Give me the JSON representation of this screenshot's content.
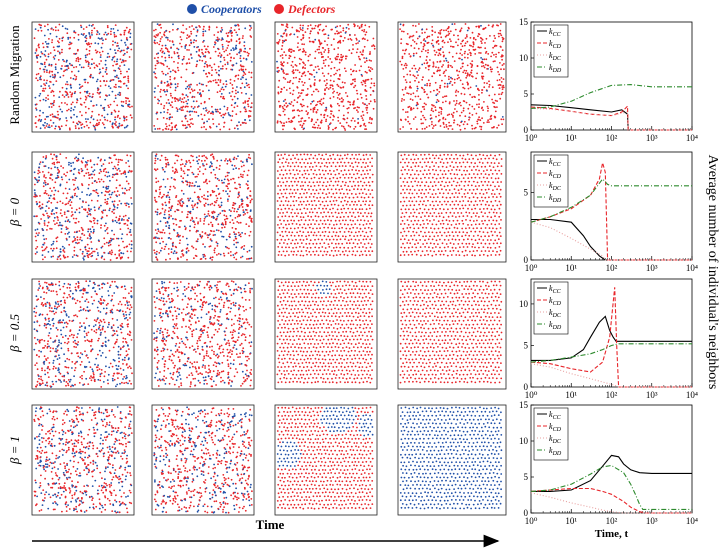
{
  "legend": {
    "items": [
      {
        "label": "Cooperators",
        "color": "#1f4fa8"
      },
      {
        "label": "Defectors",
        "color": "#e8252a"
      }
    ]
  },
  "row_labels": [
    "Random Migration",
    "β = 0",
    "β = 0.5",
    "β = 1"
  ],
  "snapshot_panels": [
    [
      {
        "cooperator_fraction": 0.35,
        "pattern": "random"
      },
      {
        "cooperator_fraction": 0.25,
        "pattern": "random"
      },
      {
        "cooperator_fraction": 0.05,
        "pattern": "random"
      },
      {
        "cooperator_fraction": 0.05,
        "pattern": "random"
      }
    ],
    [
      {
        "cooperator_fraction": 0.35,
        "pattern": "random"
      },
      {
        "cooperator_fraction": 0.25,
        "pattern": "random"
      },
      {
        "cooperator_fraction": 0.0,
        "pattern": "lattice"
      },
      {
        "cooperator_fraction": 0.0,
        "pattern": "lattice"
      }
    ],
    [
      {
        "cooperator_fraction": 0.35,
        "pattern": "random"
      },
      {
        "cooperator_fraction": 0.2,
        "pattern": "random"
      },
      {
        "cooperator_fraction": 0.02,
        "pattern": "lattice",
        "cluster": "top-center"
      },
      {
        "cooperator_fraction": 0.0,
        "pattern": "lattice"
      }
    ],
    [
      {
        "cooperator_fraction": 0.35,
        "pattern": "random"
      },
      {
        "cooperator_fraction": 0.3,
        "pattern": "random"
      },
      {
        "cooperator_fraction": 0.15,
        "pattern": "lattice",
        "cluster": "top-edges"
      },
      {
        "cooperator_fraction": 1.0,
        "pattern": "lattice"
      }
    ]
  ],
  "time_label": "Time",
  "right_axis_label": "Average number of individual's neighbors",
  "chart_data": [
    {
      "type": "line",
      "x_scale": "log",
      "xlim": [
        1,
        10000
      ],
      "ylim": [
        0,
        15
      ],
      "yticks": [
        0,
        5,
        10,
        15
      ],
      "xtick_labels": [
        "10⁰",
        "10¹",
        "10²",
        "10³",
        "10⁴"
      ],
      "xlabel": "",
      "legend_position": "top-left",
      "series": [
        {
          "name": "k_CC",
          "color": "#000000",
          "style": "solid",
          "x": [
            1,
            3,
            10,
            30,
            100,
            180,
            250,
            260,
            10000
          ],
          "y": [
            3.5,
            3.4,
            3.1,
            2.8,
            2.5,
            2.8,
            2.2,
            0,
            0
          ]
        },
        {
          "name": "k_CD",
          "color": "#e8252a",
          "style": "dashed",
          "x": [
            1,
            3,
            10,
            30,
            100,
            180,
            250,
            260,
            10000
          ],
          "y": [
            3.2,
            3.0,
            2.6,
            2.2,
            2.0,
            2.5,
            3.3,
            0,
            0
          ]
        },
        {
          "name": "k_DC",
          "color": "#e8a0a0",
          "style": "dotted",
          "x": [
            1,
            3,
            10,
            30,
            100,
            250,
            260,
            10000
          ],
          "y": [
            3.0,
            2.9,
            2.6,
            2.2,
            2.0,
            2.5,
            0,
            0
          ]
        },
        {
          "name": "k_DD",
          "color": "#2e8b2e",
          "style": "dashdot",
          "x": [
            1,
            3,
            10,
            30,
            100,
            300,
            1000,
            3000,
            10000
          ],
          "y": [
            3.0,
            3.2,
            4.0,
            5.2,
            6.2,
            6.3,
            6.0,
            6.0,
            6.0
          ]
        }
      ]
    },
    {
      "type": "line",
      "x_scale": "log",
      "xlim": [
        1,
        10000
      ],
      "ylim": [
        0,
        8
      ],
      "yticks": [
        0,
        5
      ],
      "xtick_labels": [
        "10⁰",
        "10¹",
        "10²",
        "10³",
        "10⁴"
      ],
      "xlabel": "",
      "legend_position": "top-left",
      "series": [
        {
          "name": "k_CC",
          "color": "#000000",
          "style": "solid",
          "x": [
            1,
            3,
            10,
            20,
            30,
            50,
            70,
            10000
          ],
          "y": [
            3.0,
            3.0,
            2.8,
            1.8,
            1.0,
            0.3,
            0,
            0
          ]
        },
        {
          "name": "k_CD",
          "color": "#e8252a",
          "style": "dashed",
          "x": [
            1,
            3,
            10,
            30,
            50,
            60,
            70,
            80,
            10000
          ],
          "y": [
            2.8,
            3.2,
            3.8,
            4.8,
            6.0,
            7.2,
            6.5,
            0,
            0
          ]
        },
        {
          "name": "k_DC",
          "color": "#e8a0a0",
          "style": "dotted",
          "x": [
            1,
            3,
            10,
            30,
            60,
            70,
            10000
          ],
          "y": [
            2.8,
            2.4,
            1.6,
            0.8,
            0.3,
            0,
            0
          ]
        },
        {
          "name": "k_DD",
          "color": "#2e8b2e",
          "style": "dashdot",
          "x": [
            1,
            3,
            10,
            30,
            60,
            80,
            100,
            1000,
            10000
          ],
          "y": [
            2.8,
            3.2,
            3.9,
            4.8,
            6.0,
            5.6,
            5.5,
            5.5,
            5.5
          ]
        }
      ]
    },
    {
      "type": "line",
      "x_scale": "log",
      "xlim": [
        1,
        10000
      ],
      "ylim": [
        0,
        13
      ],
      "yticks": [
        0,
        5,
        10
      ],
      "xtick_labels": [
        "10⁰",
        "10¹",
        "10²",
        "10³",
        "10⁴"
      ],
      "xlabel": "",
      "legend_position": "top-left",
      "series": [
        {
          "name": "k_CC",
          "color": "#000000",
          "style": "solid",
          "x": [
            1,
            3,
            10,
            20,
            30,
            50,
            70,
            90,
            110,
            130,
            10000
          ],
          "y": [
            3.2,
            3.2,
            3.5,
            4.5,
            6.0,
            7.8,
            8.5,
            6.8,
            6.0,
            5.5,
            5.5
          ]
        },
        {
          "name": "k_CD",
          "color": "#e8252a",
          "style": "dashed",
          "x": [
            1,
            3,
            10,
            30,
            60,
            90,
            120,
            135,
            150,
            10000
          ],
          "y": [
            3.0,
            2.8,
            2.2,
            1.8,
            3.0,
            6.0,
            12.0,
            5.0,
            0,
            0
          ]
        },
        {
          "name": "k_DC",
          "color": "#e8a0a0",
          "style": "dotted",
          "x": [
            1,
            3,
            10,
            30,
            60,
            120,
            150,
            10000
          ],
          "y": [
            2.8,
            2.4,
            1.6,
            1.0,
            0.6,
            0.2,
            0,
            0
          ]
        },
        {
          "name": "k_DD",
          "color": "#2e8b2e",
          "style": "dashdot",
          "x": [
            1,
            3,
            10,
            30,
            60,
            100,
            150,
            1000,
            10000
          ],
          "y": [
            3.0,
            3.2,
            3.6,
            4.0,
            4.5,
            5.0,
            5.2,
            5.2,
            5.2
          ]
        }
      ]
    },
    {
      "type": "line",
      "x_scale": "log",
      "xlim": [
        1,
        10000
      ],
      "ylim": [
        0,
        15
      ],
      "yticks": [
        0,
        5,
        10,
        15
      ],
      "xtick_labels": [
        "10⁰",
        "10¹",
        "10²",
        "10³",
        "10⁴"
      ],
      "xlabel": "Time, t",
      "legend_position": "top-left",
      "series": [
        {
          "name": "k_CC",
          "color": "#000000",
          "style": "solid",
          "x": [
            1,
            3,
            10,
            30,
            60,
            100,
            150,
            200,
            300,
            500,
            1000,
            10000
          ],
          "y": [
            3.0,
            3.0,
            3.2,
            4.5,
            6.5,
            8.0,
            7.8,
            6.8,
            6.0,
            5.6,
            5.5,
            5.5
          ]
        },
        {
          "name": "k_CD",
          "color": "#e8252a",
          "style": "dashed",
          "x": [
            1,
            3,
            10,
            30,
            60,
            100,
            200,
            300,
            500,
            700,
            10000
          ],
          "y": [
            3.0,
            3.2,
            3.4,
            3.4,
            3.0,
            2.6,
            1.6,
            0.8,
            0.2,
            0,
            0
          ]
        },
        {
          "name": "k_DC",
          "color": "#e8a0a0",
          "style": "dotted",
          "x": [
            1,
            3,
            10,
            30,
            60,
            100,
            200,
            10000
          ],
          "y": [
            2.8,
            2.2,
            1.4,
            0.8,
            0.4,
            0.2,
            0,
            0
          ]
        },
        {
          "name": "k_DD",
          "color": "#2e8b2e",
          "style": "dashdot",
          "x": [
            1,
            3,
            10,
            30,
            60,
            100,
            200,
            300,
            400,
            500,
            600,
            10000
          ],
          "y": [
            3.0,
            3.2,
            4.0,
            5.4,
            6.4,
            6.6,
            5.6,
            4.0,
            2.5,
            1.2,
            0.5,
            0.5
          ]
        }
      ]
    }
  ]
}
